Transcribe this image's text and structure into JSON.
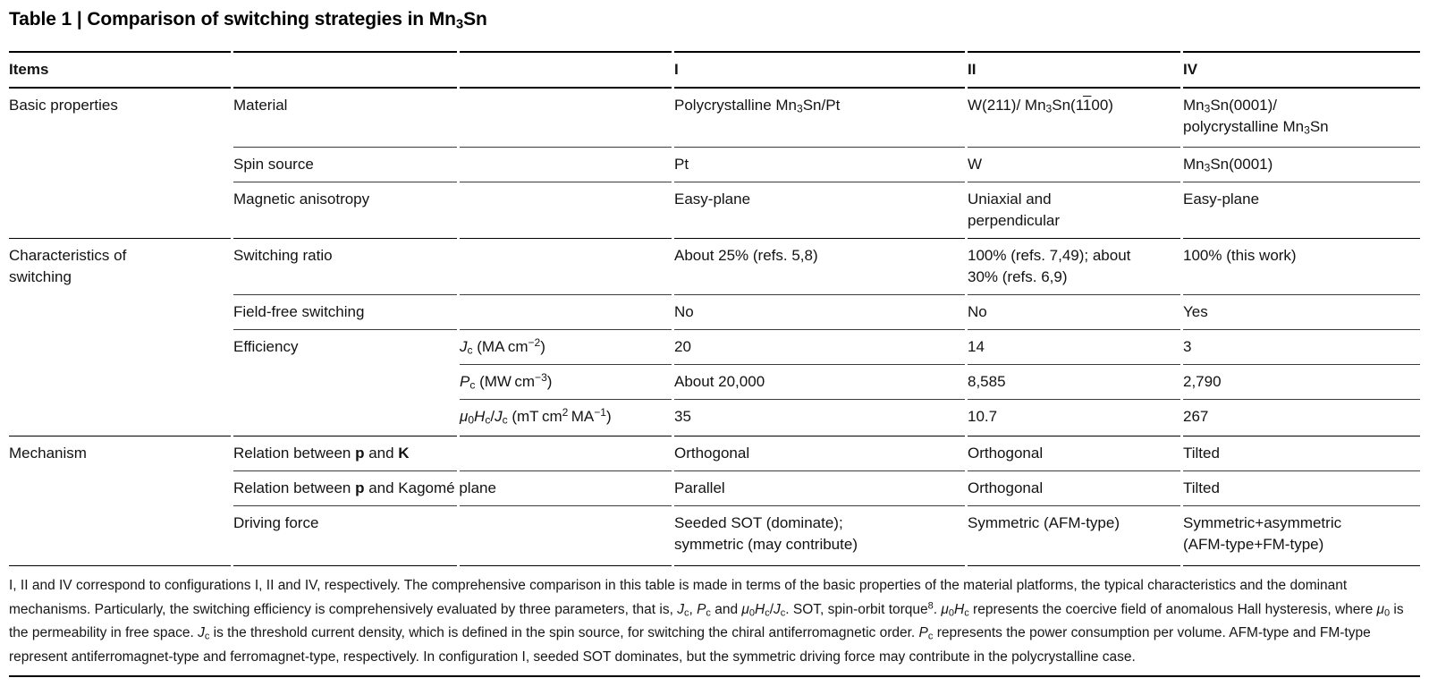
{
  "title": "Table 1 | Comparison of switching strategies in Mn<sub>3</sub>Sn",
  "header": {
    "items": "Items",
    "i": "I",
    "ii": "II",
    "iv": "IV"
  },
  "rows": [
    {
      "section": "Basic properties",
      "item": "Material",
      "param": "",
      "i": "Polycrystalline Mn<sub>3</sub>Sn/Pt",
      "ii": "W(211)/ Mn<sub>3</sub>Sn(1<span class='ovl'>1</span>00)",
      "iv": "Mn<sub>3</sub>Sn(0001)/<br>polycrystalline Mn<sub>3</sub>Sn"
    },
    {
      "section": "",
      "item": "Spin source",
      "param": "",
      "i": "Pt",
      "ii": "W",
      "iv": "Mn<sub>3</sub>Sn(0001)"
    },
    {
      "section": "",
      "item": "Magnetic anisotropy",
      "param": "",
      "i": "Easy-plane",
      "ii": "Uniaxial and<br>perpendicular",
      "iv": "Easy-plane"
    },
    {
      "section": "Characteristics of<br>switching",
      "item": "Switching ratio",
      "param": "",
      "i": "About 25% (refs. 5,8)",
      "ii": "100% (refs. 7,49); about<br>30% (refs. 6,9)",
      "iv": "100% (this work)"
    },
    {
      "section": "",
      "item": "Field-free switching",
      "param": "",
      "i": "No",
      "ii": "No",
      "iv": "Yes"
    },
    {
      "section": "",
      "item": "Efficiency",
      "param": "<i>J</i><sub>c</sub> (MA cm<sup>−2</sup>)",
      "i": "20",
      "ii": "14",
      "iv": "3"
    },
    {
      "section": "",
      "item": "",
      "param": "<i>P</i><sub>c</sub> (MW cm<sup>−3</sup>)",
      "i": "About 20,000",
      "ii": "8,585",
      "iv": "2,790"
    },
    {
      "section": "",
      "item": "",
      "param": "<i>μ</i><sub>0</sub><i>H</i><sub>c</sub>/<i>J</i><sub>c</sub> (mT cm<sup>2</sup> MA<sup>−1</sup>)",
      "i": "35",
      "ii": "10.7",
      "iv": "267"
    },
    {
      "section": "Mechanism",
      "item": "Relation between <b>p</b> and <b>K</b>",
      "param": "",
      "i": "Orthogonal",
      "ii": "Orthogonal",
      "iv": "Tilted"
    },
    {
      "section": "",
      "item": "Relation between <b>p</b> and Kagomé plane",
      "param": "",
      "i": "Parallel",
      "ii": "Orthogonal",
      "iv": "Tilted"
    },
    {
      "section": "",
      "item": "Driving force",
      "param": "",
      "i": "Seeded SOT (dominate);<br>symmetric (may contribute)",
      "ii": "Symmetric (AFM-type)",
      "iv": "Symmetric+asymmetric<br>(AFM-type+FM-type)"
    }
  ],
  "footnote": "I, II and IV correspond to configurations I, II and IV, respectively. The comprehensive comparison in this table is made in terms of the basic properties of the material platforms, the typical characteristics and the dominant mechanisms. Particularly, the switching efficiency is comprehensively evaluated by three parameters, that is, <i>J</i><sub>c</sub>, <i>P</i><sub>c</sub> and <i>μ</i><sub>0</sub><i>H</i><sub>c</sub>/<i>J</i><sub>c</sub>. SOT, spin-orbit torque<sup>8</sup>. <i>μ</i><sub>0</sub><i>H</i><sub>c</sub> represents the coercive field of anomalous Hall hysteresis, where <i>μ</i><sub>0</sub> is the permeability in free space. <i>J</i><sub>c</sub> is the threshold current density, which is defined in the spin source, for switching the chiral antiferromagnetic order. <i>P</i><sub>c</sub> represents the power consumption per volume. AFM-type and FM-type represent antiferromagnet-type and ferromagnet-type, respectively. In configuration I, seeded SOT dominates, but the symmetric driving force may contribute in the polycrystalline case."
}
